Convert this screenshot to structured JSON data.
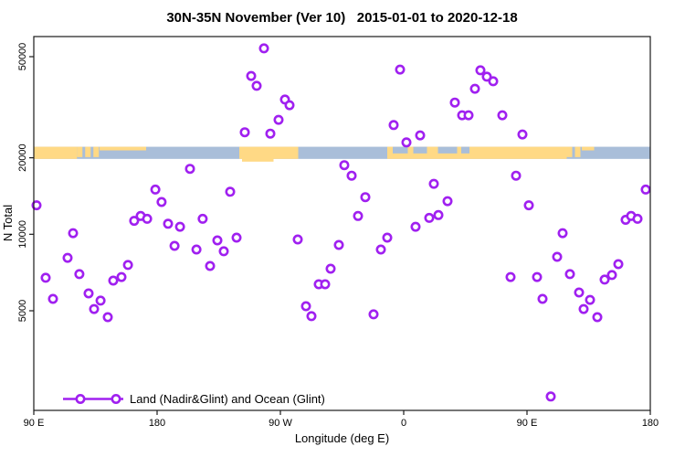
{
  "title": "30N-35N November (Ver 10)   2015-01-01 to 2020-12-18",
  "chart_data": {
    "type": "scatter",
    "title": "30N-35N November (Ver 10)   2015-01-01 to 2020-12-18",
    "xlabel": "Longitude (deg E)",
    "ylabel": "N Total",
    "x_axis": {
      "note": "axis spans 450 deg of longitude starting at 90E heading east",
      "span_deg": 450,
      "ticks": [
        {
          "d": 0,
          "label": "90 E"
        },
        {
          "d": 90,
          "label": "180"
        },
        {
          "d": 180,
          "label": "90 W"
        },
        {
          "d": 270,
          "label": "0"
        },
        {
          "d": 360,
          "label": "90 E"
        },
        {
          "d": 450,
          "label": "180"
        }
      ]
    },
    "y_axis": {
      "scale": "log10",
      "range": [
        2030,
        60000
      ],
      "ticks": [
        {
          "value": 5000,
          "label": "5000"
        },
        {
          "value": 10000,
          "label": "10000"
        },
        {
          "value": 20000,
          "label": "20000"
        },
        {
          "value": 50000,
          "label": "50000"
        }
      ]
    },
    "legend": {
      "label": "Land (Nadir&Glint) and Ocean (Glint)",
      "marker": "open-circles-on-line"
    },
    "colors": {
      "point": "#A020F0",
      "ocean": "#A9BED9",
      "land": "#FFD985",
      "axis": "#1a1a1a"
    },
    "map_strip": {
      "n_range": [
        19800,
        22100
      ],
      "land_segments_deg": [
        [
          0,
          31.5
        ],
        [
          150,
          193
        ],
        [
          258,
          389
        ]
      ],
      "ocean_patches_top_deg": [
        [
          262,
          273
        ],
        [
          277,
          287
        ],
        [
          295,
          309
        ],
        [
          312,
          318
        ]
      ],
      "island_patches_deg": [
        [
          31.5,
          35.5
        ],
        [
          37.5,
          41.5
        ],
        [
          43.5,
          47.5
        ],
        [
          388,
          393
        ],
        [
          395,
          399
        ]
      ],
      "top_fringe_deg": [
        [
          48,
          82
        ],
        [
          400,
          409
        ]
      ],
      "bottom_fringe_deg": [
        [
          152,
          175
        ]
      ]
    },
    "points": [
      [
        2,
        13000
      ],
      [
        8.7,
        6740
      ],
      [
        14,
        5570
      ],
      [
        24.7,
        8080
      ],
      [
        28.7,
        10100
      ],
      [
        33.3,
        6970
      ],
      [
        40,
        5850
      ],
      [
        44,
        5080
      ],
      [
        48.7,
        5480
      ],
      [
        54,
        4720
      ],
      [
        58,
        6570
      ],
      [
        64,
        6790
      ],
      [
        68.7,
        7570
      ],
      [
        73.3,
        11300
      ],
      [
        78,
        11800
      ],
      [
        82.7,
        11500
      ],
      [
        88.7,
        15000
      ],
      [
        93.3,
        13400
      ],
      [
        98,
        11000
      ],
      [
        102.7,
        9000
      ],
      [
        106.7,
        10700
      ],
      [
        114,
        18100
      ],
      [
        118.7,
        8710
      ],
      [
        123.3,
        11500
      ],
      [
        128.7,
        7500
      ],
      [
        134,
        9460
      ],
      [
        138.7,
        8570
      ],
      [
        143.3,
        14700
      ],
      [
        148,
        9700
      ],
      [
        154,
        25200
      ],
      [
        158.7,
        42000
      ],
      [
        162.7,
        38400
      ],
      [
        168,
        53900
      ],
      [
        172.7,
        24900
      ],
      [
        178.7,
        28200
      ],
      [
        183.3,
        33900
      ],
      [
        186.7,
        32200
      ],
      [
        192.7,
        9540
      ],
      [
        198.7,
        5210
      ],
      [
        202.7,
        4760
      ],
      [
        208,
        6360
      ],
      [
        212.7,
        6360
      ],
      [
        216.7,
        7320
      ],
      [
        222.7,
        9080
      ],
      [
        226.7,
        18700
      ],
      [
        232,
        17000
      ],
      [
        236.7,
        11800
      ],
      [
        242,
        14000
      ],
      [
        248,
        4840
      ],
      [
        253.3,
        8710
      ],
      [
        258,
        9700
      ],
      [
        262.7,
        26900
      ],
      [
        267.3,
        44500
      ],
      [
        272,
        23000
      ],
      [
        278.7,
        10700
      ],
      [
        282,
        24500
      ],
      [
        288.7,
        11600
      ],
      [
        292,
        15800
      ],
      [
        295.3,
        11900
      ],
      [
        302,
        13500
      ],
      [
        307.3,
        33000
      ],
      [
        312.7,
        29400
      ],
      [
        317.3,
        29400
      ],
      [
        322,
        37400
      ],
      [
        326,
        44200
      ],
      [
        330.7,
        41700
      ],
      [
        335.3,
        40000
      ],
      [
        342,
        29400
      ],
      [
        348,
        6790
      ],
      [
        352,
        17000
      ],
      [
        356.7,
        24700
      ],
      [
        361.3,
        13000
      ],
      [
        367.3,
        6790
      ],
      [
        371.3,
        5570
      ],
      [
        377.3,
        2300
      ],
      [
        382,
        8150
      ],
      [
        386,
        10100
      ],
      [
        391.3,
        6970
      ],
      [
        398,
        5900
      ],
      [
        401.3,
        5080
      ],
      [
        406,
        5520
      ],
      [
        411.3,
        4720
      ],
      [
        416.7,
        6630
      ],
      [
        422,
        6910
      ],
      [
        426.7,
        7630
      ],
      [
        432,
        11400
      ],
      [
        436,
        11800
      ],
      [
        440.7,
        11500
      ],
      [
        446.7,
        15000
      ]
    ]
  }
}
